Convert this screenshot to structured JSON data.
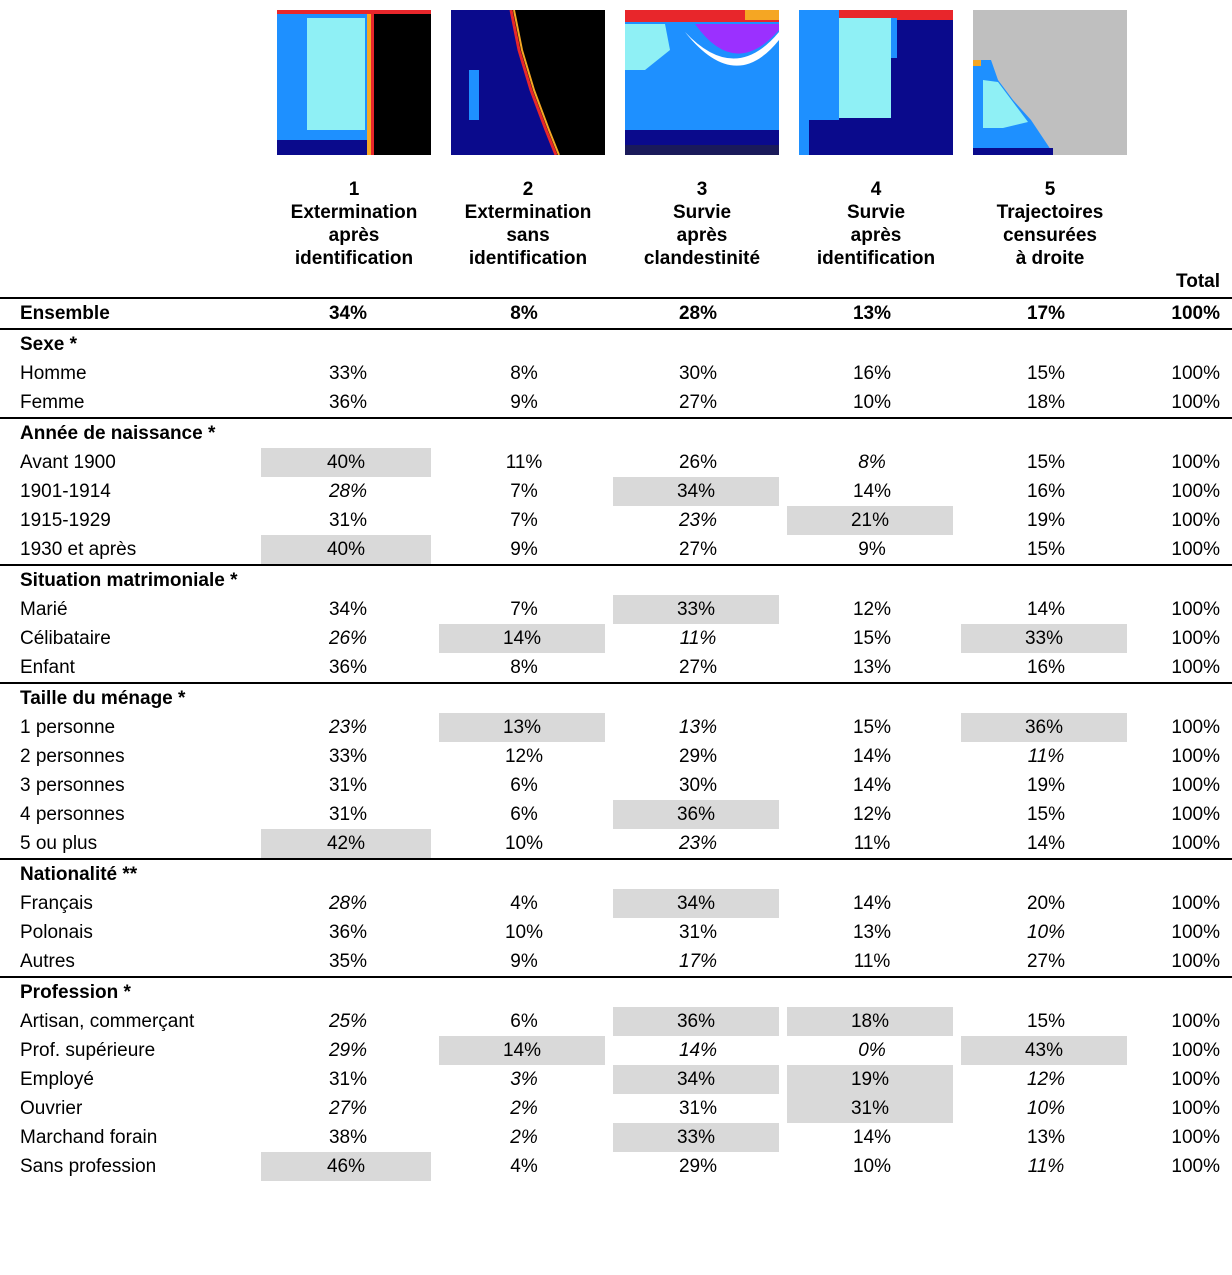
{
  "columns": [
    {
      "number": "1",
      "lines": [
        "Extermination",
        "après",
        "identification"
      ]
    },
    {
      "number": "2",
      "lines": [
        "Extermination",
        "sans",
        "identification"
      ]
    },
    {
      "number": "3",
      "lines": [
        "Survie",
        "après",
        "clandestinité"
      ]
    },
    {
      "number": "4",
      "lines": [
        "Survie",
        "après",
        "identification"
      ]
    },
    {
      "number": "5",
      "lines": [
        "Trajectoires",
        "censurées",
        "à droite"
      ]
    }
  ],
  "total_label": "Total",
  "rows": [
    {
      "kind": "overall",
      "label": "Ensemble",
      "values": [
        "34%",
        "8%",
        "28%",
        "13%",
        "17%"
      ],
      "total": "100%"
    },
    {
      "kind": "section",
      "label": "Sexe *"
    },
    {
      "kind": "data",
      "label": "Homme",
      "values": [
        "33%",
        "8%",
        "30%",
        "16%",
        "15%"
      ],
      "total": "100%"
    },
    {
      "kind": "data",
      "label": "Femme",
      "values": [
        "36%",
        "9%",
        "27%",
        "10%",
        "18%"
      ],
      "total": "100%"
    },
    {
      "kind": "section",
      "label": "Année de naissance *"
    },
    {
      "kind": "data",
      "label": "Avant 1900",
      "values": [
        "40%",
        "11%",
        "26%",
        "8%",
        "15%"
      ],
      "total": "100%",
      "hl": [
        0
      ],
      "it": [
        3
      ]
    },
    {
      "kind": "data",
      "label": "1901-1914",
      "values": [
        "28%",
        "7%",
        "34%",
        "14%",
        "16%"
      ],
      "total": "100%",
      "hl": [
        2
      ],
      "it": [
        0
      ]
    },
    {
      "kind": "data",
      "label": "1915-1929",
      "values": [
        "31%",
        "7%",
        "23%",
        "21%",
        "19%"
      ],
      "total": "100%",
      "hl": [
        3
      ],
      "it": [
        2
      ]
    },
    {
      "kind": "data",
      "label": "1930 et après",
      "values": [
        "40%",
        "9%",
        "27%",
        "9%",
        "15%"
      ],
      "total": "100%",
      "hl": [
        0
      ]
    },
    {
      "kind": "section",
      "label": "Situation matrimoniale *"
    },
    {
      "kind": "data",
      "label": "Marié",
      "values": [
        "34%",
        "7%",
        "33%",
        "12%",
        "14%"
      ],
      "total": "100%",
      "hl": [
        2
      ]
    },
    {
      "kind": "data",
      "label": "Célibataire",
      "values": [
        "26%",
        "14%",
        "11%",
        "15%",
        "33%"
      ],
      "total": "100%",
      "hl": [
        1,
        4
      ],
      "it": [
        0,
        2
      ]
    },
    {
      "kind": "data",
      "label": "Enfant",
      "values": [
        "36%",
        "8%",
        "27%",
        "13%",
        "16%"
      ],
      "total": "100%"
    },
    {
      "kind": "section",
      "label": "Taille du ménage *"
    },
    {
      "kind": "data",
      "label": "1 personne",
      "values": [
        "23%",
        "13%",
        "13%",
        "15%",
        "36%"
      ],
      "total": "100%",
      "hl": [
        1,
        4
      ],
      "it": [
        0,
        2
      ]
    },
    {
      "kind": "data",
      "label": "2 personnes",
      "values": [
        "33%",
        "12%",
        "29%",
        "14%",
        "11%"
      ],
      "total": "100%",
      "it": [
        4
      ]
    },
    {
      "kind": "data",
      "label": "3 personnes",
      "values": [
        "31%",
        "6%",
        "30%",
        "14%",
        "19%"
      ],
      "total": "100%"
    },
    {
      "kind": "data",
      "label": "4 personnes",
      "values": [
        "31%",
        "6%",
        "36%",
        "12%",
        "15%"
      ],
      "total": "100%",
      "hl": [
        2
      ]
    },
    {
      "kind": "data",
      "label": "5 ou plus",
      "values": [
        "42%",
        "10%",
        "23%",
        "11%",
        "14%"
      ],
      "total": "100%",
      "hl": [
        0
      ],
      "it": [
        2
      ]
    },
    {
      "kind": "section",
      "label": "Nationalité **"
    },
    {
      "kind": "data",
      "label": "Français",
      "values": [
        "28%",
        "4%",
        "34%",
        "14%",
        "20%"
      ],
      "total": "100%",
      "hl": [
        2
      ],
      "it": [
        0
      ]
    },
    {
      "kind": "data",
      "label": "Polonais",
      "values": [
        "36%",
        "10%",
        "31%",
        "13%",
        "10%"
      ],
      "total": "100%",
      "it": [
        4
      ]
    },
    {
      "kind": "data",
      "label": "Autres",
      "values": [
        "35%",
        "9%",
        "17%",
        "11%",
        "27%"
      ],
      "total": "100%",
      "it": [
        2
      ]
    },
    {
      "kind": "section",
      "label": "Profession *"
    },
    {
      "kind": "data",
      "label": "Artisan, commerçant",
      "values": [
        "25%",
        "6%",
        "36%",
        "18%",
        "15%"
      ],
      "total": "100%",
      "hl": [
        2,
        3
      ],
      "it": [
        0
      ]
    },
    {
      "kind": "data",
      "label": "Prof. supérieure",
      "values": [
        "29%",
        "14%",
        "14%",
        "0%",
        "43%"
      ],
      "total": "100%",
      "hl": [
        1,
        4
      ],
      "it": [
        0,
        2,
        3
      ]
    },
    {
      "kind": "data",
      "label": "Employé",
      "values": [
        "31%",
        "3%",
        "34%",
        "19%",
        "12%"
      ],
      "total": "100%",
      "hl": [
        2,
        3
      ],
      "it": [
        1,
        4
      ]
    },
    {
      "kind": "data",
      "label": "Ouvrier",
      "values": [
        "27%",
        "2%",
        "31%",
        "31%",
        "10%"
      ],
      "total": "100%",
      "hl": [
        3
      ],
      "it": [
        0,
        1,
        4
      ]
    },
    {
      "kind": "data",
      "label": "Marchand forain",
      "values": [
        "38%",
        "2%",
        "33%",
        "14%",
        "13%"
      ],
      "total": "100%",
      "hl": [
        2
      ],
      "it": [
        1
      ]
    },
    {
      "kind": "data",
      "label": "Sans profession",
      "values": [
        "46%",
        "4%",
        "29%",
        "10%",
        "11%"
      ],
      "total": "100%",
      "hl": [
        0
      ],
      "it": [
        4
      ]
    }
  ],
  "colors": {
    "highlight": "#d9d9d9",
    "light_blue": "#1e90ff",
    "cyan": "#8ff0f5",
    "navy": "#0a0a8c",
    "black": "#000000",
    "red": "#e8262b",
    "orange": "#f5a623",
    "purple": "#9b30ff",
    "grey": "#bfbfbf"
  }
}
